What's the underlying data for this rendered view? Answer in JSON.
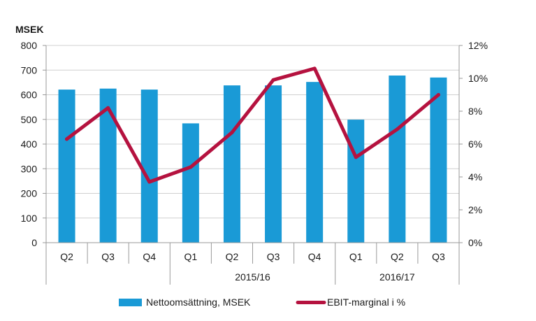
{
  "chart_data": {
    "type": "bar+line",
    "ylabel": "MSEK",
    "categories": [
      "Q2",
      "Q3",
      "Q4",
      "Q1",
      "Q2",
      "Q3",
      "Q4",
      "Q1",
      "Q2",
      "Q3"
    ],
    "groups": [
      {
        "label": "",
        "start": 0,
        "end": 2
      },
      {
        "label": "2015/16",
        "start": 3,
        "end": 6
      },
      {
        "label": "2016/17",
        "start": 7,
        "end": 9
      }
    ],
    "series": [
      {
        "name": "Nettoomsättning, MSEK",
        "type": "bar",
        "axis": "left",
        "color": "#1a9ad6",
        "values": [
          621,
          625,
          621,
          484,
          638,
          638,
          652,
          499,
          678,
          670
        ]
      },
      {
        "name": "EBIT-marginal i %",
        "type": "line",
        "axis": "right",
        "color": "#b5123f",
        "values": [
          6.3,
          8.2,
          3.7,
          4.6,
          6.7,
          9.9,
          10.6,
          5.2,
          6.9,
          9.0
        ]
      }
    ],
    "y_left": {
      "min": 0,
      "max": 800,
      "step": 100,
      "ticks": [
        "0",
        "100",
        "200",
        "300",
        "400",
        "500",
        "600",
        "700",
        "800"
      ]
    },
    "y_right": {
      "min": 0,
      "max": 12,
      "step": 2,
      "ticks": [
        "0%",
        "2%",
        "4%",
        "6%",
        "8%",
        "10%",
        "12%"
      ]
    },
    "grid": true,
    "legend_position": "bottom"
  }
}
